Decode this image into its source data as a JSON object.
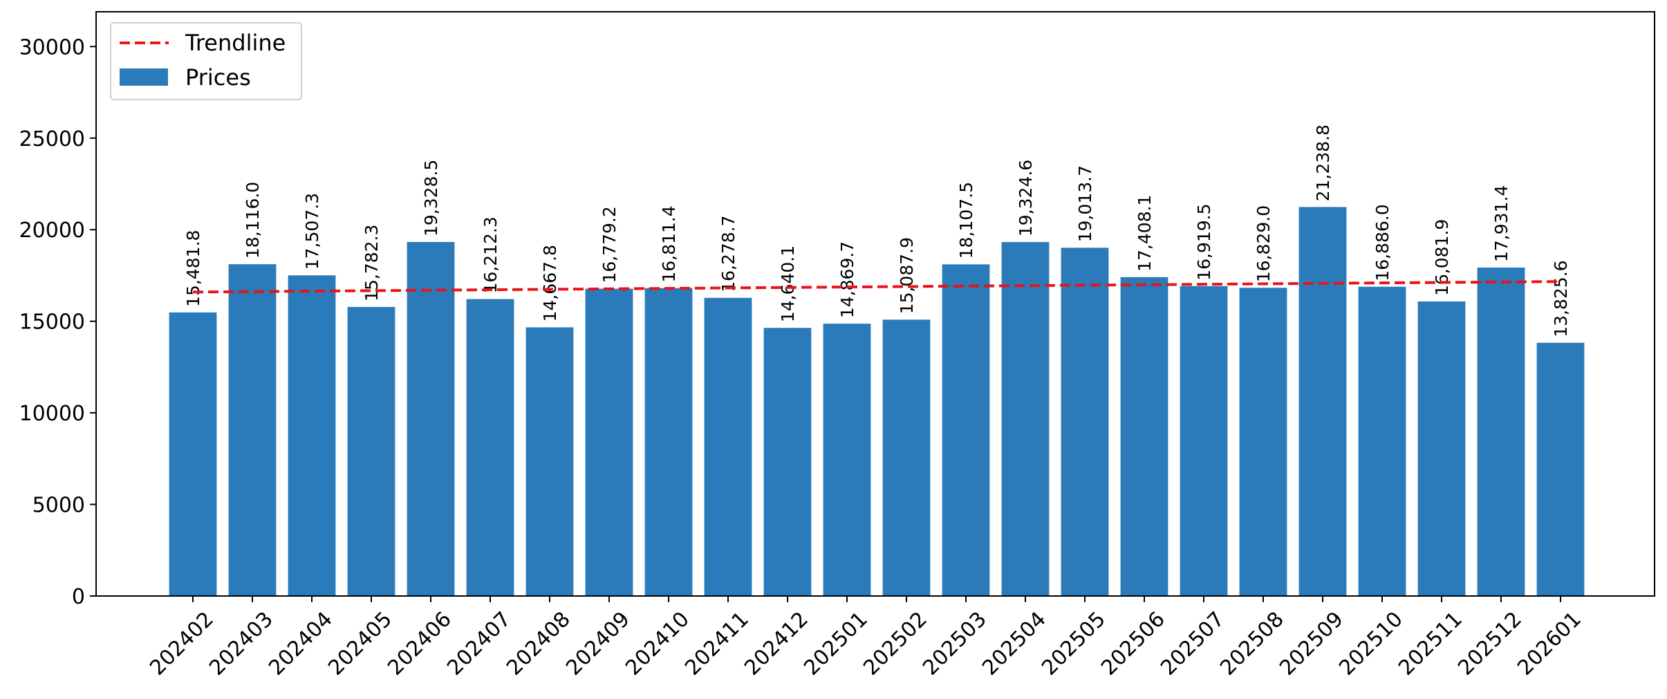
{
  "chart_data": {
    "type": "bar",
    "categories": [
      "202402",
      "202403",
      "202404",
      "202405",
      "202406",
      "202407",
      "202408",
      "202409",
      "202410",
      "202411",
      "202412",
      "202501",
      "202502",
      "202503",
      "202504",
      "202505",
      "202506",
      "202507",
      "202508",
      "202509",
      "202510",
      "202511",
      "202512",
      "202601"
    ],
    "series": [
      {
        "name": "Prices",
        "type": "bar",
        "color": "#2b7bba",
        "values": [
          15481.8,
          18116.0,
          17507.3,
          15782.3,
          19328.5,
          16212.3,
          14667.8,
          16779.2,
          16811.4,
          16278.7,
          14640.1,
          14869.7,
          15087.9,
          18107.5,
          19324.6,
          19013.7,
          17408.1,
          16919.5,
          16829.0,
          21238.8,
          16886.0,
          16081.9,
          17931.4,
          13825.6
        ],
        "labels": [
          "15,481.8",
          "18,116.0",
          "17,507.3",
          "15,782.3",
          "19,328.5",
          "16,212.3",
          "14,667.8",
          "16,779.2",
          "16,811.4",
          "16,278.7",
          "14,640.1",
          "14,869.7",
          "15,087.9",
          "18,107.5",
          "19,324.6",
          "19,013.7",
          "17,408.1",
          "16,919.5",
          "16,829.0",
          "21,238.8",
          "16,886.0",
          "16,081.9",
          "17,931.4",
          "13,825.6"
        ]
      },
      {
        "name": "Trendline",
        "type": "line",
        "style": "dashed",
        "color": "#e8141a",
        "values": [
          16595,
          16620,
          16645,
          16670,
          16695,
          16720,
          16745,
          16770,
          16795,
          16820,
          16845,
          16870,
          16895,
          16920,
          16945,
          16970,
          16995,
          17020,
          17045,
          17070,
          17095,
          17120,
          17145,
          17170
        ]
      }
    ],
    "title": "",
    "xlabel": "",
    "ylabel": "",
    "ylim": [
      0,
      31900
    ],
    "yticks": [
      "0",
      "5000",
      "10000",
      "15000",
      "20000",
      "25000",
      "30000"
    ],
    "yticks_values": [
      0,
      5000,
      10000,
      15000,
      20000,
      25000,
      30000
    ],
    "grid": false,
    "legend": "top-left"
  }
}
